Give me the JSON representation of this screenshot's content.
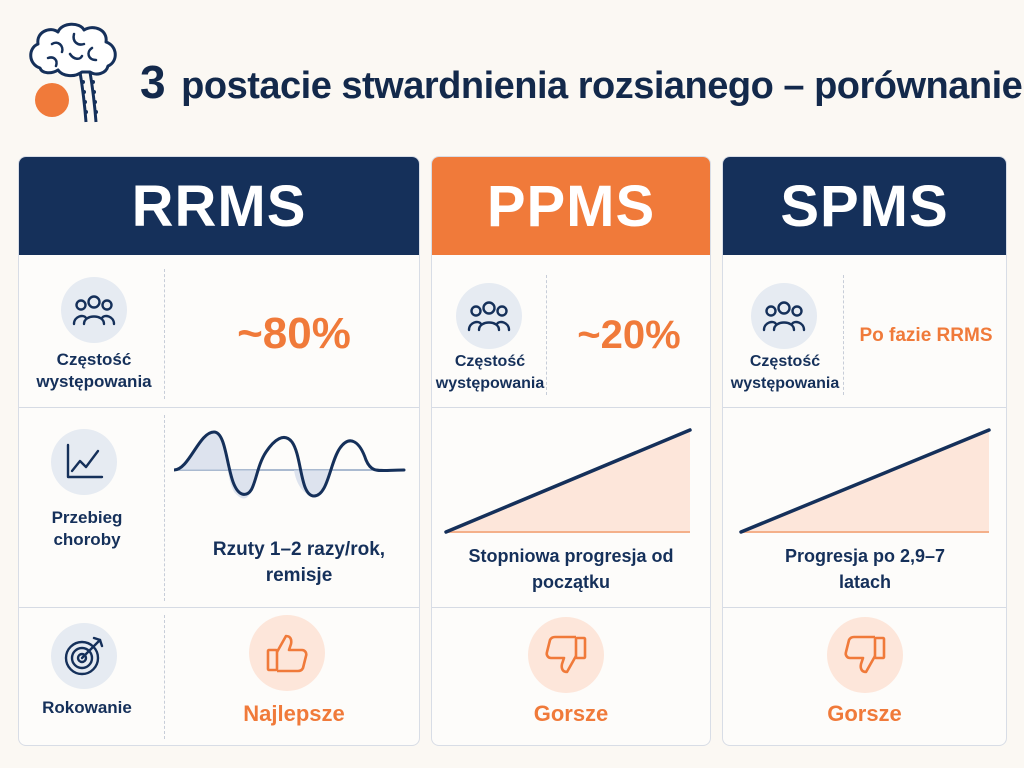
{
  "title": {
    "number": "3",
    "text": "postacie stwardnienia rozsianego – porównanie"
  },
  "colors": {
    "navy": "#15305a",
    "orange": "#f07a3a",
    "peach": "#fde6da",
    "icon_bg": "#e6ebf2"
  },
  "columns": [
    {
      "name": "RRMS",
      "header_color": "navy",
      "frequency_label": "Częstość występowania",
      "frequency_value": "~80%",
      "course_label": "Przebieg choroby",
      "course_desc": "Rzuty 1–2 razy/rok, remisje",
      "course_chart": "wave",
      "prognosis_label": "Rokowanie",
      "prognosis_icon": "thumbs-up-icon",
      "prognosis_value": "Najlepsze"
    },
    {
      "name": "PPMS",
      "header_color": "orange",
      "frequency_label": "Częstość występowania",
      "frequency_value": "~20%",
      "course_desc": "Stopniowa progresja od początku",
      "course_chart": "rising-line",
      "prognosis_icon": "thumbs-down-icon",
      "prognosis_value": "Gorsze"
    },
    {
      "name": "SPMS",
      "header_color": "navy",
      "frequency_label": "Częstość występowania",
      "frequency_value": "Po fazie RRMS",
      "course_desc": "Progresja po 2,9–7 latach",
      "course_chart": "rising-line",
      "prognosis_icon": "thumbs-down-icon",
      "prognosis_value": "Gorsze"
    }
  ]
}
